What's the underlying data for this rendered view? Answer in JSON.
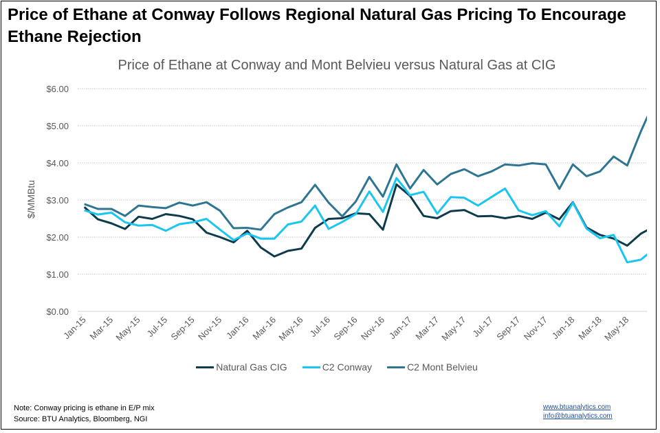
{
  "title": "Price of Ethane at Conway Follows Regional Natural Gas Pricing To Encourage Ethane Rejection",
  "footer": {
    "note": "Note:  Conway pricing is ethane in E/P mix",
    "source": "Source: BTU Analytics, Bloomberg, NGI",
    "links": [
      "www.btuanalytics.com",
      "info@btuanalytics.com"
    ]
  },
  "chart_data": {
    "type": "line",
    "title": "Price of Ethane at Conway and Mont Belvieu versus Natural Gas at CIG",
    "xlabel": "",
    "ylabel": "$/MMBtu",
    "ylim": [
      0,
      6
    ],
    "yticks": [
      "$0.00",
      "$1.00",
      "$2.00",
      "$3.00",
      "$4.00",
      "$5.00",
      "$6.00"
    ],
    "grid": true,
    "legend_position": "bottom",
    "x": [
      "Jan-15",
      "Feb-15",
      "Mar-15",
      "Apr-15",
      "May-15",
      "Jun-15",
      "Jul-15",
      "Aug-15",
      "Sep-15",
      "Oct-15",
      "Nov-15",
      "Dec-15",
      "Jan-16",
      "Feb-16",
      "Mar-16",
      "Apr-16",
      "May-16",
      "Jun-16",
      "Jul-16",
      "Aug-16",
      "Sep-16",
      "Oct-16",
      "Nov-16",
      "Dec-16",
      "Jan-17",
      "Feb-17",
      "Mar-17",
      "Apr-17",
      "May-17",
      "Jun-17",
      "Jul-17",
      "Aug-17",
      "Sep-17",
      "Oct-17",
      "Nov-17",
      "Dec-17",
      "Jan-18",
      "Feb-18",
      "Mar-18",
      "Apr-18",
      "May-18",
      "Jun-18",
      "Jul-18"
    ],
    "xtick_labels": [
      "Jan-15",
      "Mar-15",
      "May-15",
      "Jul-15",
      "Sep-15",
      "Nov-15",
      "Jan-16",
      "Mar-16",
      "May-16",
      "Jul-16",
      "Sep-16",
      "Nov-16",
      "Jan-17",
      "Mar-17",
      "May-17",
      "Jul-17",
      "Sep-17",
      "Nov-17",
      "Jan-18",
      "Mar-18",
      "May-18"
    ],
    "series": [
      {
        "name": "Natural Gas CIG",
        "color": "#0d3b4c",
        "values": [
          2.81,
          2.48,
          2.37,
          2.22,
          2.55,
          2.49,
          2.62,
          2.57,
          2.48,
          2.12,
          2.0,
          1.86,
          2.17,
          1.72,
          1.48,
          1.63,
          1.69,
          2.25,
          2.49,
          2.51,
          2.64,
          2.62,
          2.2,
          3.42,
          3.11,
          2.57,
          2.51,
          2.7,
          2.73,
          2.56,
          2.57,
          2.51,
          2.57,
          2.49,
          2.66,
          2.48,
          2.94,
          2.26,
          2.06,
          1.96,
          1.77,
          2.09,
          2.29
        ]
      },
      {
        "name": "C2 Conway",
        "color": "#19c6f0",
        "values": [
          2.72,
          2.61,
          2.66,
          2.4,
          2.31,
          2.33,
          2.17,
          2.35,
          2.4,
          2.49,
          2.2,
          1.92,
          2.1,
          1.96,
          1.96,
          2.34,
          2.42,
          2.85,
          2.22,
          2.41,
          2.62,
          3.23,
          2.68,
          3.59,
          3.13,
          3.22,
          2.63,
          3.08,
          3.06,
          2.85,
          3.08,
          3.31,
          2.72,
          2.59,
          2.7,
          2.29,
          2.93,
          2.23,
          1.97,
          2.06,
          1.32,
          1.39,
          1.69
        ]
      },
      {
        "name": "C2 Mont Belvieu",
        "color": "#2e7591",
        "values": [
          2.89,
          2.76,
          2.76,
          2.57,
          2.85,
          2.81,
          2.78,
          2.93,
          2.85,
          2.94,
          2.71,
          2.24,
          2.25,
          2.2,
          2.62,
          2.8,
          2.94,
          3.41,
          2.93,
          2.56,
          2.96,
          3.62,
          3.09,
          3.96,
          3.31,
          3.81,
          3.42,
          3.7,
          3.83,
          3.64,
          3.77,
          3.96,
          3.93,
          3.99,
          3.96,
          3.3,
          3.96,
          3.64,
          3.77,
          4.17,
          3.93,
          4.84,
          5.66
        ]
      }
    ]
  }
}
